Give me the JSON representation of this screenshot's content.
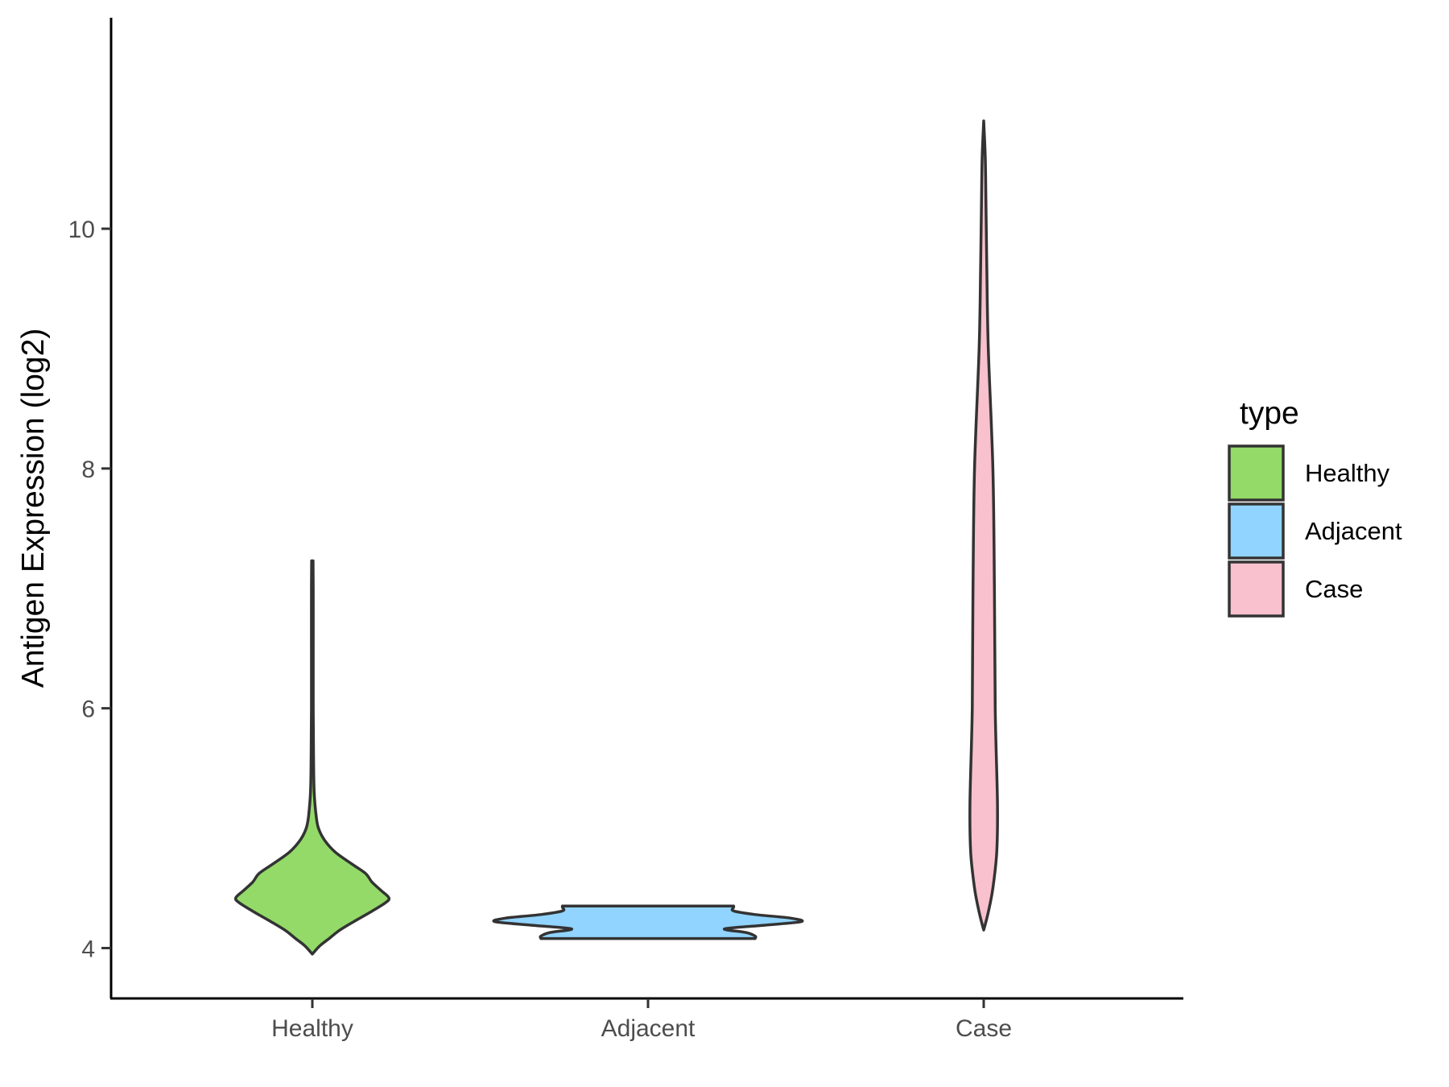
{
  "chart_data": {
    "type": "violin",
    "ylabel": "Antigen Expression (log2)",
    "xlabel": "",
    "ylim": [
      3.58,
      11.76
    ],
    "yticks": [
      4,
      6,
      8,
      10
    ],
    "categories": [
      "Healthy",
      "Adjacent",
      "Case"
    ],
    "grid": false,
    "legend": {
      "title": "type",
      "placement": "right",
      "entries": [
        "Healthy",
        "Adjacent",
        "Case"
      ]
    },
    "series": [
      {
        "category": "Healthy",
        "fill": "#93DA69",
        "min": 3.95,
        "max": 7.23,
        "density": [
          [
            3.95,
            0.0
          ],
          [
            4.02,
            0.05
          ],
          [
            4.08,
            0.11
          ],
          [
            4.15,
            0.18
          ],
          [
            4.22,
            0.27
          ],
          [
            4.3,
            0.38
          ],
          [
            4.38,
            0.48
          ],
          [
            4.42,
            0.5
          ],
          [
            4.48,
            0.45
          ],
          [
            4.55,
            0.39
          ],
          [
            4.62,
            0.35
          ],
          [
            4.7,
            0.26
          ],
          [
            4.8,
            0.15
          ],
          [
            4.9,
            0.08
          ],
          [
            5.0,
            0.04
          ],
          [
            5.1,
            0.025
          ],
          [
            5.3,
            0.012
          ],
          [
            5.6,
            0.008
          ],
          [
            6.0,
            0.006
          ],
          [
            6.5,
            0.006
          ],
          [
            7.0,
            0.006
          ],
          [
            7.23,
            0.005
          ]
        ]
      },
      {
        "category": "Adjacent",
        "fill": "#90D4FF",
        "min": 4.08,
        "max": 4.35,
        "density": [
          [
            4.08,
            0.7
          ],
          [
            4.1,
            0.7
          ],
          [
            4.13,
            0.64
          ],
          [
            4.16,
            0.5
          ],
          [
            4.19,
            0.75
          ],
          [
            4.22,
            1.0
          ],
          [
            4.25,
            0.93
          ],
          [
            4.28,
            0.7
          ],
          [
            4.31,
            0.56
          ],
          [
            4.34,
            0.56
          ],
          [
            4.35,
            0.56
          ]
        ]
      },
      {
        "category": "Case",
        "fill": "#F8C1CD",
        "min": 4.15,
        "max": 10.9,
        "density": [
          [
            4.15,
            0.0
          ],
          [
            4.3,
            0.03
          ],
          [
            4.5,
            0.06
          ],
          [
            4.8,
            0.085
          ],
          [
            5.2,
            0.09
          ],
          [
            6.0,
            0.075
          ],
          [
            7.0,
            0.07
          ],
          [
            8.0,
            0.06
          ],
          [
            9.0,
            0.03
          ],
          [
            9.7,
            0.02
          ],
          [
            10.2,
            0.015
          ],
          [
            10.6,
            0.01
          ],
          [
            10.9,
            0.0
          ]
        ]
      }
    ]
  }
}
